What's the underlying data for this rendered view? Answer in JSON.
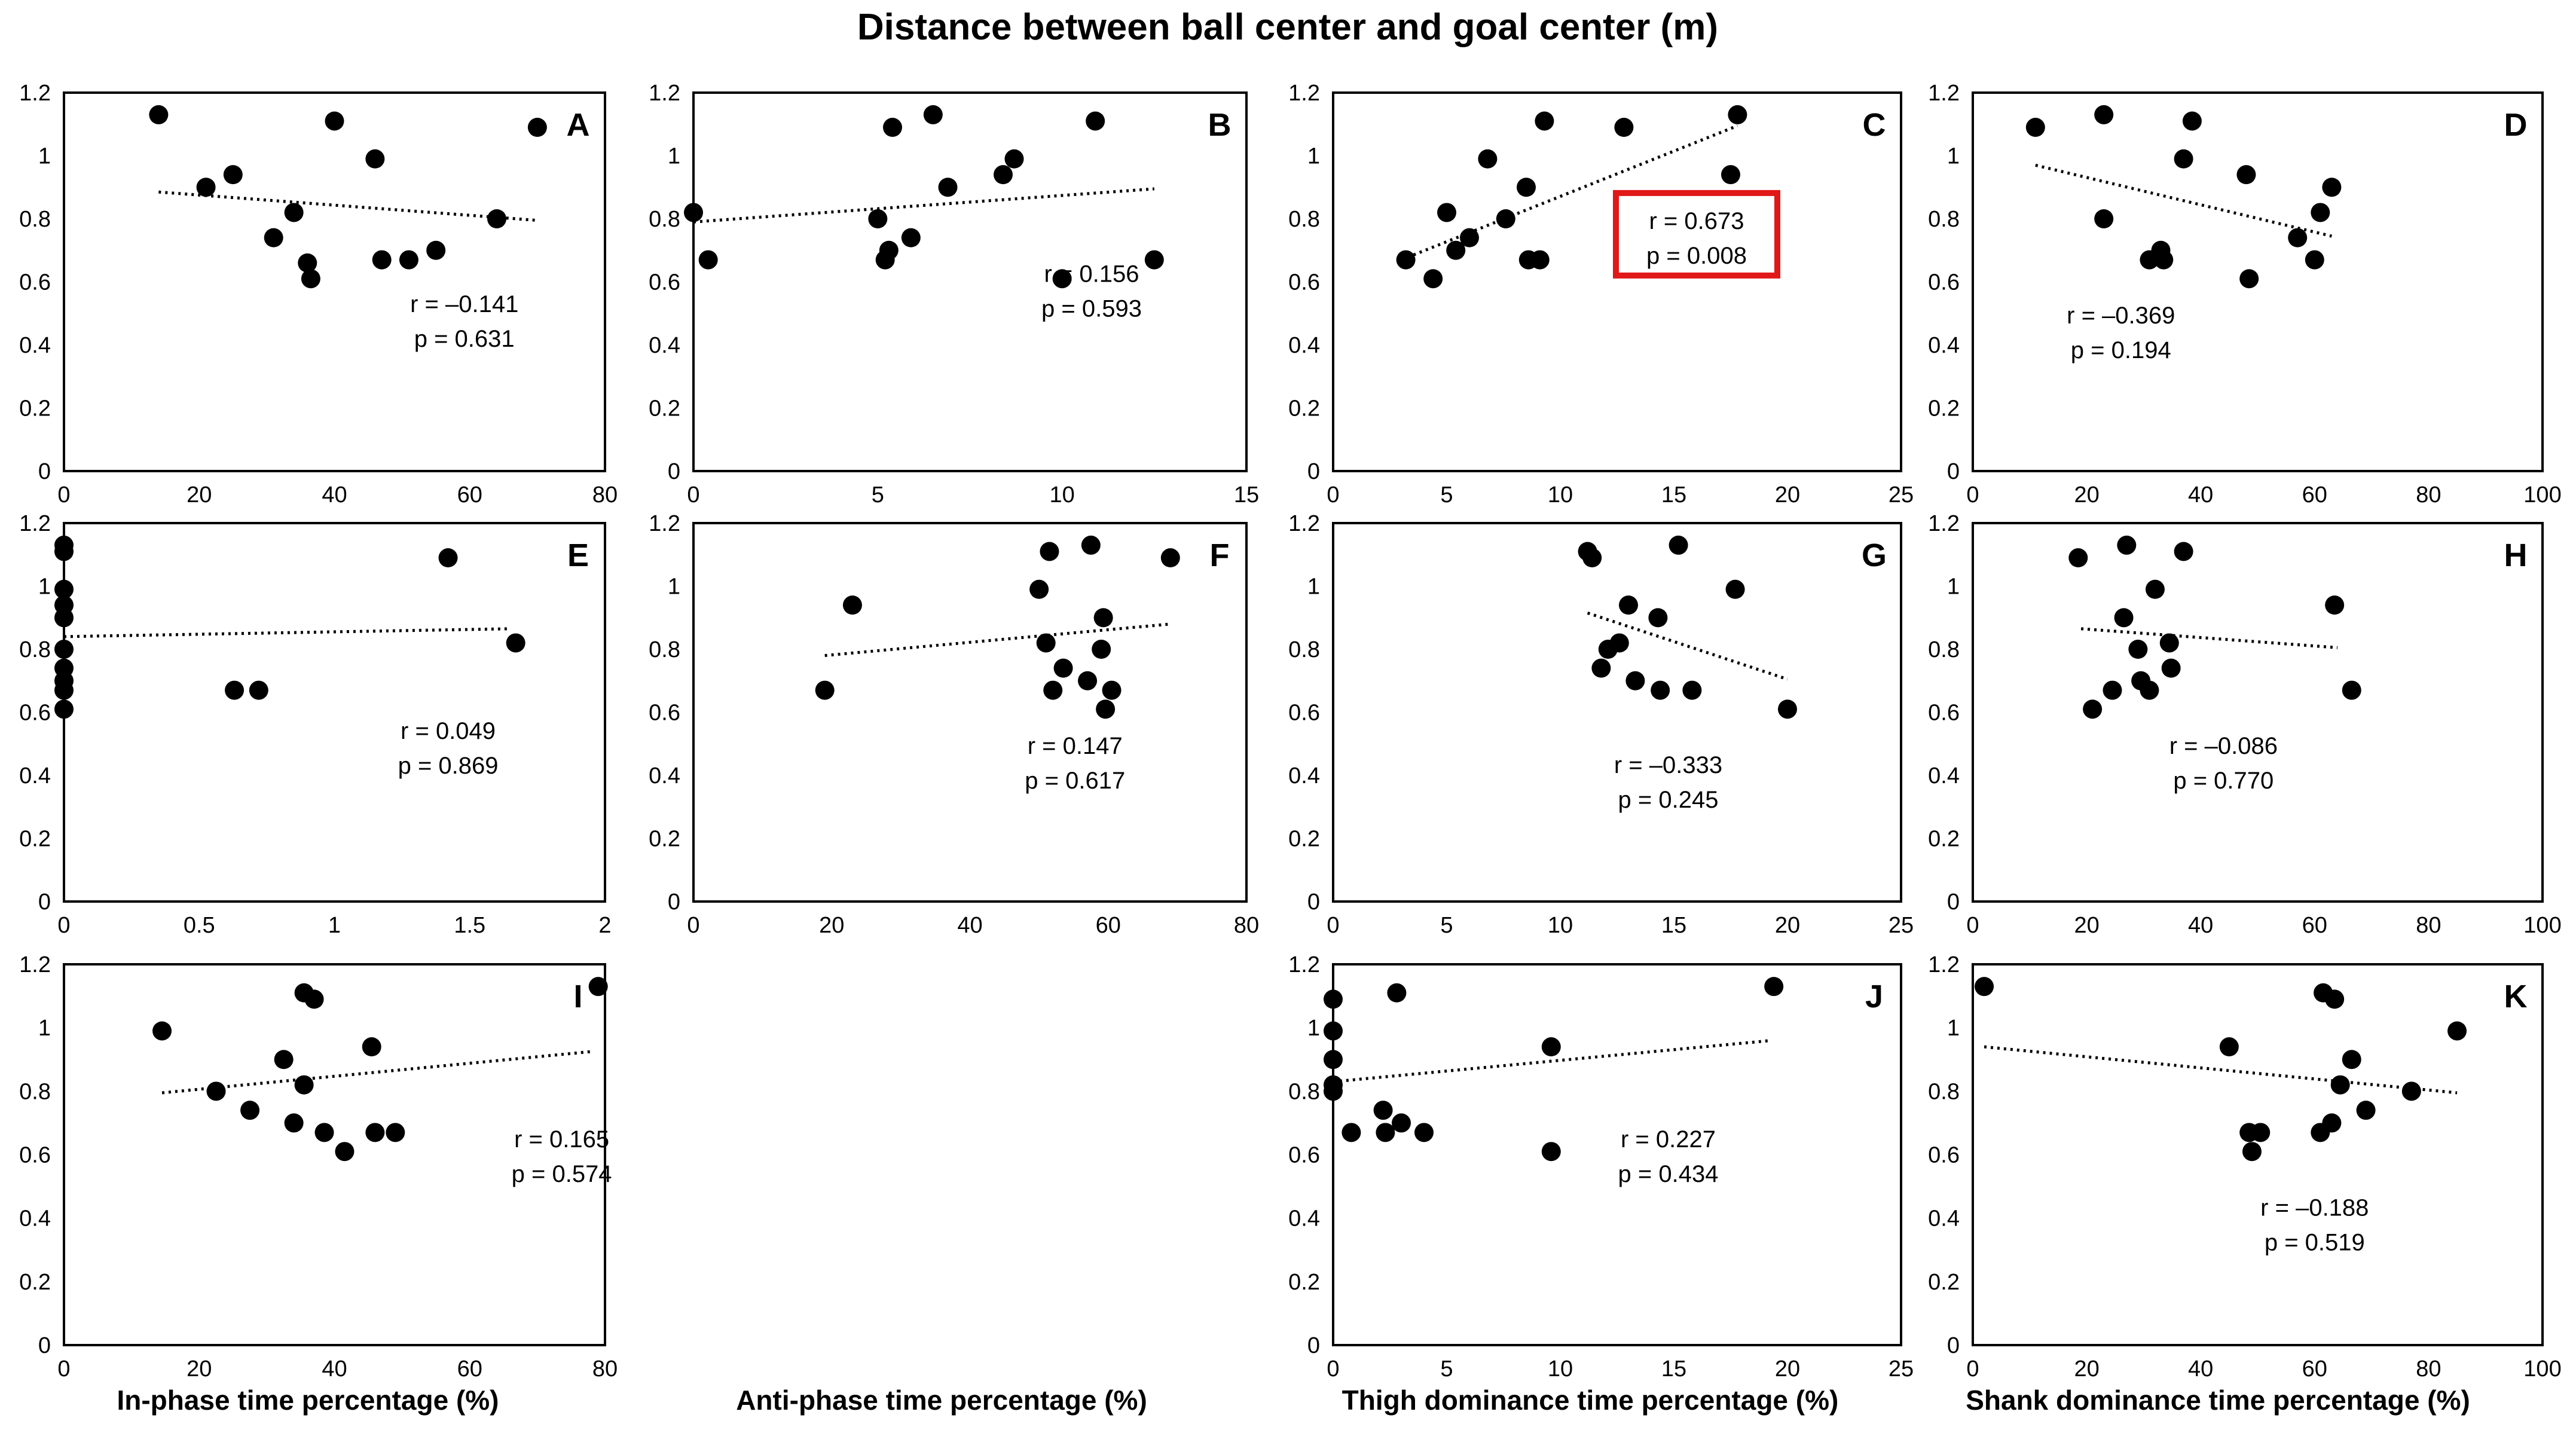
{
  "chart_data": {
    "type": "scatter",
    "title": "Distance between ball center and goal center (m)",
    "ylim": [
      0,
      1.2
    ],
    "yticks": [
      "0",
      "0.2",
      "0.4",
      "0.6",
      "0.8",
      "1",
      "1.2"
    ],
    "column_xlabels": [
      "In-phase time percentage (%)",
      "Anti-phase time percentage (%)",
      "Thigh dominance time percentage (%)",
      "Shank dominance time percentage (%)"
    ],
    "highlight_color": "#e01818",
    "panels": [
      {
        "label": "A",
        "row": 0,
        "col": 0,
        "xlim": [
          0,
          80
        ],
        "xticks": [
          "0",
          "20",
          "40",
          "60",
          "80"
        ],
        "r": "r = –0.141",
        "p": "p = 0.631",
        "stat_pos": [
          0.74,
          0.58
        ],
        "highlight": false,
        "trend": [
          [
            14,
            0.885
          ],
          [
            70,
            0.795
          ]
        ],
        "points": [
          [
            14,
            1.13
          ],
          [
            21,
            0.9
          ],
          [
            25,
            0.94
          ],
          [
            31,
            0.74
          ],
          [
            34,
            0.82
          ],
          [
            36,
            0.66
          ],
          [
            36.5,
            0.61
          ],
          [
            40,
            1.11
          ],
          [
            46,
            0.99
          ],
          [
            47,
            0.67
          ],
          [
            51,
            0.67
          ],
          [
            55,
            0.7
          ],
          [
            64,
            0.8
          ],
          [
            70,
            1.09
          ]
        ]
      },
      {
        "label": "B",
        "row": 0,
        "col": 1,
        "xlim": [
          0,
          15
        ],
        "xticks": [
          "0",
          "5",
          "10",
          "15"
        ],
        "r": "r = 0.156",
        "p": "p = 0.593",
        "stat_pos": [
          0.72,
          0.5
        ],
        "highlight": false,
        "trend": [
          [
            0,
            0.79
          ],
          [
            12.5,
            0.895
          ]
        ],
        "points": [
          [
            0,
            0.82
          ],
          [
            0.4,
            0.67
          ],
          [
            5,
            0.8
          ],
          [
            5.2,
            0.67
          ],
          [
            5.3,
            0.7
          ],
          [
            5.4,
            1.09
          ],
          [
            5.9,
            0.74
          ],
          [
            6.5,
            1.13
          ],
          [
            6.9,
            0.9
          ],
          [
            8.4,
            0.94
          ],
          [
            8.7,
            0.99
          ],
          [
            10,
            0.61
          ],
          [
            10.9,
            1.11
          ],
          [
            12.5,
            0.67
          ]
        ]
      },
      {
        "label": "C",
        "row": 0,
        "col": 2,
        "xlim": [
          0,
          25
        ],
        "xticks": [
          "0",
          "5",
          "10",
          "15",
          "20",
          "25"
        ],
        "r": "r = 0.673",
        "p": "p = 0.008",
        "stat_pos": [
          0.64,
          0.36
        ],
        "highlight": true,
        "trend": [
          [
            3,
            0.67
          ],
          [
            17.8,
            1.095
          ]
        ],
        "points": [
          [
            3.2,
            0.67
          ],
          [
            4.4,
            0.61
          ],
          [
            5,
            0.82
          ],
          [
            5.4,
            0.7
          ],
          [
            6,
            0.74
          ],
          [
            6.8,
            0.99
          ],
          [
            7.6,
            0.8
          ],
          [
            8.5,
            0.9
          ],
          [
            8.6,
            0.67
          ],
          [
            9.1,
            0.67
          ],
          [
            9.3,
            1.11
          ],
          [
            12.8,
            1.09
          ],
          [
            17.5,
            0.94
          ],
          [
            17.8,
            1.13
          ]
        ]
      },
      {
        "label": "D",
        "row": 0,
        "col": 3,
        "xlim": [
          0,
          100
        ],
        "xticks": [
          "0",
          "20",
          "40",
          "60",
          "80",
          "100"
        ],
        "r": "r = –0.369",
        "p": "p = 0.194",
        "stat_pos": [
          0.26,
          0.61
        ],
        "highlight": false,
        "trend": [
          [
            11,
            0.97
          ],
          [
            63,
            0.745
          ]
        ],
        "points": [
          [
            11,
            1.09
          ],
          [
            23,
            1.13
          ],
          [
            23,
            0.8
          ],
          [
            31,
            0.67
          ],
          [
            33,
            0.7
          ],
          [
            33.5,
            0.67
          ],
          [
            37,
            0.99
          ],
          [
            38.5,
            1.11
          ],
          [
            48,
            0.94
          ],
          [
            48.5,
            0.61
          ],
          [
            57,
            0.74
          ],
          [
            60,
            0.67
          ],
          [
            61,
            0.82
          ],
          [
            63,
            0.9
          ]
        ]
      },
      {
        "label": "E",
        "row": 1,
        "col": 0,
        "xlim": [
          0,
          2
        ],
        "xticks": [
          "0",
          "0.5",
          "1",
          "1.5",
          "2"
        ],
        "r": "r = 0.049",
        "p": "p = 0.869",
        "stat_pos": [
          0.71,
          0.57
        ],
        "highlight": false,
        "trend": [
          [
            0,
            0.84
          ],
          [
            1.65,
            0.865
          ]
        ],
        "points": [
          [
            0,
            1.13
          ],
          [
            0,
            1.11
          ],
          [
            0,
            0.99
          ],
          [
            0,
            0.94
          ],
          [
            0,
            0.9
          ],
          [
            0,
            0.8
          ],
          [
            0,
            0.74
          ],
          [
            0,
            0.7
          ],
          [
            0,
            0.67
          ],
          [
            0,
            0.61
          ],
          [
            0.63,
            0.67
          ],
          [
            0.72,
            0.67
          ],
          [
            1.42,
            1.09
          ],
          [
            1.67,
            0.82
          ]
        ]
      },
      {
        "label": "F",
        "row": 1,
        "col": 1,
        "xlim": [
          0,
          80
        ],
        "xticks": [
          "0",
          "20",
          "40",
          "60",
          "80"
        ],
        "r": "r = 0.147",
        "p": "p = 0.617",
        "stat_pos": [
          0.69,
          0.61
        ],
        "highlight": false,
        "trend": [
          [
            19,
            0.78
          ],
          [
            69,
            0.88
          ]
        ],
        "points": [
          [
            19,
            0.67
          ],
          [
            23,
            0.94
          ],
          [
            50,
            0.99
          ],
          [
            51,
            0.82
          ],
          [
            51.5,
            1.11
          ],
          [
            52,
            0.67
          ],
          [
            53.5,
            0.74
          ],
          [
            57,
            0.7
          ],
          [
            57.5,
            1.13
          ],
          [
            59,
            0.8
          ],
          [
            59.3,
            0.9
          ],
          [
            59.6,
            0.61
          ],
          [
            60.5,
            0.67
          ],
          [
            69,
            1.09
          ]
        ]
      },
      {
        "label": "G",
        "row": 1,
        "col": 2,
        "xlim": [
          0,
          25
        ],
        "xticks": [
          "0",
          "5",
          "10",
          "15",
          "20",
          "25"
        ],
        "r": "r = –0.333",
        "p": "p = 0.245",
        "stat_pos": [
          0.59,
          0.66
        ],
        "highlight": false,
        "trend": [
          [
            11.2,
            0.915
          ],
          [
            20,
            0.705
          ]
        ],
        "points": [
          [
            11.2,
            1.11
          ],
          [
            11.4,
            1.09
          ],
          [
            11.8,
            0.74
          ],
          [
            12.1,
            0.8
          ],
          [
            12.6,
            0.82
          ],
          [
            13,
            0.94
          ],
          [
            13.3,
            0.7
          ],
          [
            14.3,
            0.9
          ],
          [
            14.4,
            0.67
          ],
          [
            15.2,
            1.13
          ],
          [
            15.8,
            0.67
          ],
          [
            17.7,
            0.99
          ],
          [
            20,
            0.61
          ]
        ]
      },
      {
        "label": "H",
        "row": 1,
        "col": 3,
        "xlim": [
          0,
          100
        ],
        "xticks": [
          "0",
          "20",
          "40",
          "60",
          "80",
          "100"
        ],
        "r": "r = –0.086",
        "p": "p = 0.770",
        "stat_pos": [
          0.44,
          0.61
        ],
        "highlight": false,
        "trend": [
          [
            19,
            0.865
          ],
          [
            64,
            0.805
          ]
        ],
        "points": [
          [
            18.5,
            1.09
          ],
          [
            21,
            0.61
          ],
          [
            24.5,
            0.67
          ],
          [
            26.5,
            0.9
          ],
          [
            27,
            1.13
          ],
          [
            29,
            0.8
          ],
          [
            29.5,
            0.7
          ],
          [
            31,
            0.67
          ],
          [
            32,
            0.99
          ],
          [
            34.5,
            0.82
          ],
          [
            34.8,
            0.74
          ],
          [
            37,
            1.11
          ],
          [
            63.5,
            0.94
          ],
          [
            66.5,
            0.67
          ]
        ]
      },
      {
        "label": "I",
        "row": 2,
        "col": 0,
        "xlim": [
          0,
          80
        ],
        "xticks": [
          "0",
          "20",
          "40",
          "60",
          "80"
        ],
        "r": "r = 0.165",
        "p": "p = 0.574",
        "stat_pos": [
          0.92,
          0.48
        ],
        "highlight": false,
        "trend": [
          [
            14.5,
            0.795
          ],
          [
            78,
            0.925
          ]
        ],
        "points": [
          [
            14.5,
            0.99
          ],
          [
            22.5,
            0.8
          ],
          [
            27.5,
            0.74
          ],
          [
            32.5,
            0.9
          ],
          [
            34,
            0.7
          ],
          [
            35.5,
            0.82
          ],
          [
            35.5,
            1.11
          ],
          [
            37,
            1.09
          ],
          [
            38.5,
            0.67
          ],
          [
            41.5,
            0.61
          ],
          [
            45.5,
            0.94
          ],
          [
            46,
            0.67
          ],
          [
            49,
            0.67
          ],
          [
            79,
            1.13
          ]
        ]
      },
      {
        "label": "J",
        "row": 2,
        "col": 2,
        "xlim": [
          0,
          25
        ],
        "xticks": [
          "0",
          "5",
          "10",
          "15",
          "20",
          "25"
        ],
        "r": "r = 0.227",
        "p": "p = 0.434",
        "stat_pos": [
          0.59,
          0.48
        ],
        "highlight": false,
        "trend": [
          [
            0,
            0.83
          ],
          [
            19.3,
            0.96
          ]
        ],
        "points": [
          [
            0,
            1.09
          ],
          [
            0,
            0.99
          ],
          [
            0,
            0.9
          ],
          [
            0,
            0.82
          ],
          [
            0,
            0.8
          ],
          [
            0.8,
            0.67
          ],
          [
            2.2,
            0.74
          ],
          [
            2.3,
            0.67
          ],
          [
            2.8,
            1.11
          ],
          [
            3,
            0.7
          ],
          [
            4,
            0.67
          ],
          [
            9.6,
            0.94
          ],
          [
            9.6,
            0.61
          ],
          [
            19.4,
            1.13
          ]
        ]
      },
      {
        "label": "K",
        "row": 2,
        "col": 3,
        "xlim": [
          0,
          100
        ],
        "xticks": [
          "0",
          "20",
          "40",
          "60",
          "80",
          "100"
        ],
        "r": "r = –0.188",
        "p": "p = 0.519",
        "stat_pos": [
          0.6,
          0.66
        ],
        "highlight": false,
        "trend": [
          [
            2,
            0.94
          ],
          [
            85,
            0.795
          ]
        ],
        "points": [
          [
            2,
            1.13
          ],
          [
            45,
            0.94
          ],
          [
            48.5,
            0.67
          ],
          [
            49,
            0.61
          ],
          [
            50.5,
            0.67
          ],
          [
            61,
            0.67
          ],
          [
            61.5,
            1.11
          ],
          [
            63,
            0.7
          ],
          [
            63.5,
            1.09
          ],
          [
            64.5,
            0.82
          ],
          [
            66.5,
            0.9
          ],
          [
            69,
            0.74
          ],
          [
            77,
            0.8
          ],
          [
            85,
            0.99
          ]
        ]
      }
    ]
  }
}
